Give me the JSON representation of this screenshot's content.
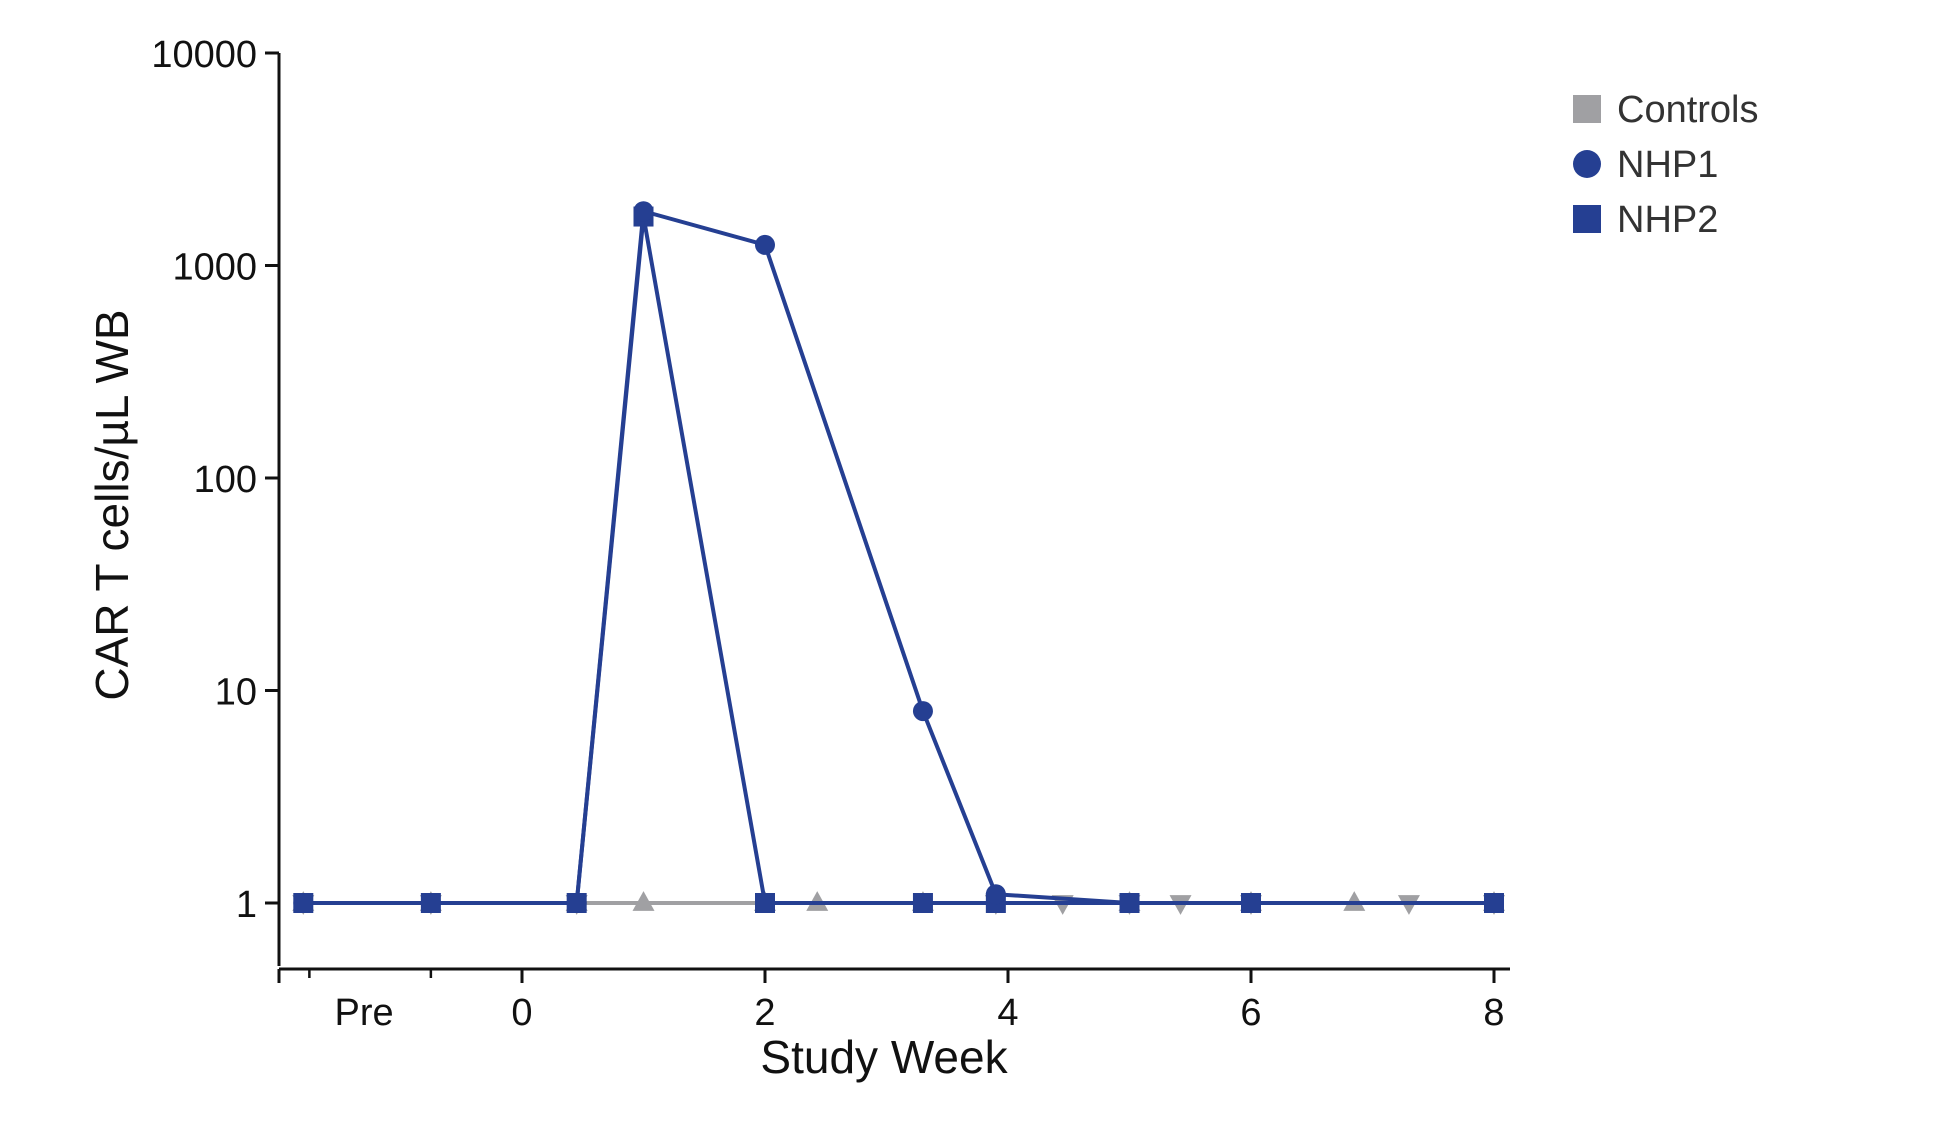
{
  "chart_data": {
    "type": "line",
    "title": "",
    "xlabel": "Study Week",
    "ylabel": "CAR T cells/µL WB",
    "yscale": "log",
    "ylim": [
      0.5,
      10000
    ],
    "xlim": [
      -2.0,
      8.0
    ],
    "x_ticks": [
      {
        "value": -1.3,
        "label": "Pre"
      },
      {
        "value": 0,
        "label": "0"
      },
      {
        "value": 2,
        "label": "2"
      },
      {
        "value": 4,
        "label": "4"
      },
      {
        "value": 6,
        "label": "6"
      },
      {
        "value": 8,
        "label": "8"
      }
    ],
    "x_minor_ticks": [
      -1.75,
      -0.75
    ],
    "y_ticks": [
      {
        "value": 1,
        "label": "1"
      },
      {
        "value": 10,
        "label": "10"
      },
      {
        "value": 100,
        "label": "100"
      },
      {
        "value": 1000,
        "label": "1000"
      },
      {
        "value": 10000,
        "label": "10000"
      }
    ],
    "legend": {
      "position": "top-right",
      "entries": [
        {
          "label": "Controls",
          "marker": "square",
          "color": "#a0a0a3"
        },
        {
          "label": "NHP1",
          "marker": "circle",
          "color": "#253f92"
        },
        {
          "label": "NHP2",
          "marker": "square",
          "color": "#253f92"
        }
      ]
    },
    "series": [
      {
        "name": "Controls",
        "marker": "triangle-up",
        "color": "#a0a0a3",
        "points": [
          [
            -1.8,
            1
          ],
          [
            -0.75,
            1
          ],
          [
            0.45,
            1
          ],
          [
            1,
            1
          ],
          [
            2,
            1
          ],
          [
            2.43,
            1
          ],
          [
            3.3,
            1
          ],
          [
            5,
            1
          ],
          [
            6,
            1
          ],
          [
            6.85,
            1
          ],
          [
            8,
            1
          ]
        ]
      },
      {
        "name": "Controls",
        "marker": "triangle-down",
        "color": "#a0a0a3",
        "points": [
          [
            -1.8,
            1
          ],
          [
            -0.75,
            1
          ],
          [
            0.45,
            1
          ],
          [
            3.9,
            1
          ],
          [
            4.45,
            1
          ],
          [
            5,
            1
          ],
          [
            5.42,
            1
          ],
          [
            6,
            1
          ],
          [
            7.3,
            1
          ],
          [
            8,
            1
          ]
        ]
      },
      {
        "name": "NHP2",
        "marker": "square",
        "color": "#253f92",
        "points": [
          [
            -1.8,
            1
          ],
          [
            -0.75,
            1
          ],
          [
            0.45,
            1
          ],
          [
            1,
            1700
          ],
          [
            2,
            1
          ],
          [
            3.3,
            1
          ],
          [
            3.9,
            1
          ],
          [
            5,
            1
          ],
          [
            6,
            1
          ],
          [
            8,
            1
          ]
        ]
      },
      {
        "name": "NHP1",
        "marker": "circle",
        "color": "#253f92",
        "points": [
          [
            -1.8,
            1
          ],
          [
            -0.75,
            1
          ],
          [
            0.45,
            1
          ],
          [
            1,
            1800
          ],
          [
            2,
            1250
          ],
          [
            3.3,
            8
          ],
          [
            3.9,
            1.1
          ],
          [
            5,
            1
          ],
          [
            6,
            1
          ],
          [
            8,
            1
          ]
        ]
      }
    ]
  }
}
